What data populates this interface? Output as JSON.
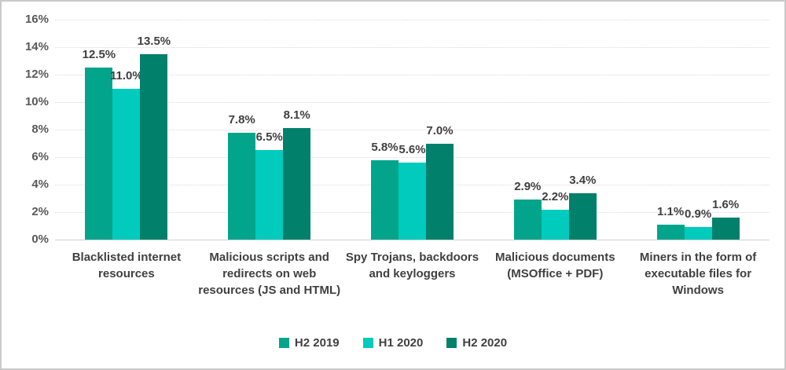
{
  "chart_data": {
    "type": "bar",
    "title": "",
    "categories": [
      "Blacklisted internet resources",
      "Malicious scripts and redirects on web resources (JS and HTML)",
      "Spy Trojans, backdoors and keyloggers",
      "Malicious documents (MSOffice + PDF)",
      "Miners in the form of executable files for Windows"
    ],
    "series": [
      {
        "name": "H2 2019",
        "color": "#02a58c",
        "values": [
          12.5,
          7.8,
          5.8,
          2.9,
          1.1
        ]
      },
      {
        "name": "H1 2020",
        "color": "#00cbbd",
        "values": [
          11.0,
          6.5,
          5.6,
          2.2,
          0.9
        ]
      },
      {
        "name": "H2 2020",
        "color": "#01806c",
        "values": [
          13.5,
          8.1,
          7.0,
          3.4,
          1.6
        ]
      }
    ],
    "ylim": [
      0,
      16
    ],
    "ytick_step": 2,
    "ytick_labels": [
      "0%",
      "2%",
      "4%",
      "6%",
      "8%",
      "10%",
      "12%",
      "14%",
      "16%"
    ],
    "data_label_suffix": "%",
    "data_label_decimals": 1,
    "grid": true,
    "gridline_color": "#d9d9d9",
    "axis_text_color": "#595959",
    "label_text_color": "#404040",
    "legend_position": "bottom"
  }
}
